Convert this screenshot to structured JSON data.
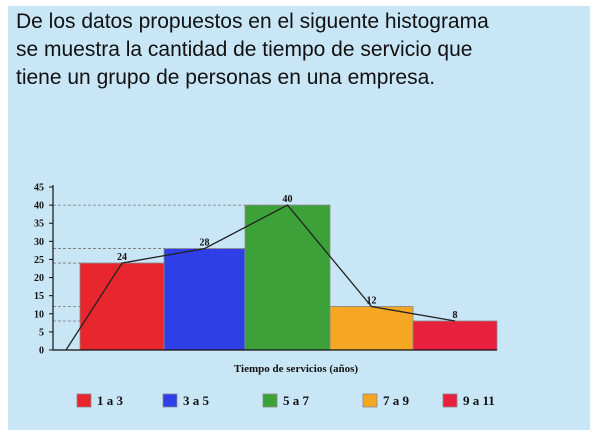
{
  "prompt": {
    "lines": [
      "De los datos propuestos en el siguente histograma",
      "se muestra la cantidad de tiempo de servicio que",
      "tiene un grupo de personas en una empresa."
    ]
  },
  "chart_data": {
    "type": "bar",
    "title": "",
    "xlabel": "Tiempo de servicios (años)",
    "ylabel": "",
    "ylim": [
      0,
      45
    ],
    "yticks": [
      0,
      5,
      10,
      15,
      20,
      25,
      30,
      35,
      40,
      45
    ],
    "categories": [
      "1 a 3",
      "3 a 5",
      "5 a 7",
      "7 a 9",
      "9 a 11"
    ],
    "values": [
      24,
      28,
      40,
      12,
      8
    ],
    "data_labels": [
      "24",
      "28",
      "40",
      "12",
      "8"
    ],
    "colors": [
      "#e8262e",
      "#2f3fe8",
      "#3da13a",
      "#f5a623",
      "#e8203f"
    ],
    "polygon": {
      "start": 0,
      "points": [
        24,
        28,
        40,
        12,
        8
      ]
    },
    "legend": {
      "position": "bottom",
      "entries": [
        "1 a 3",
        "3 a 5",
        "5 a 7",
        "7 a 9",
        "9 a 11"
      ]
    },
    "grid": "dashed guide lines at bar tops"
  }
}
